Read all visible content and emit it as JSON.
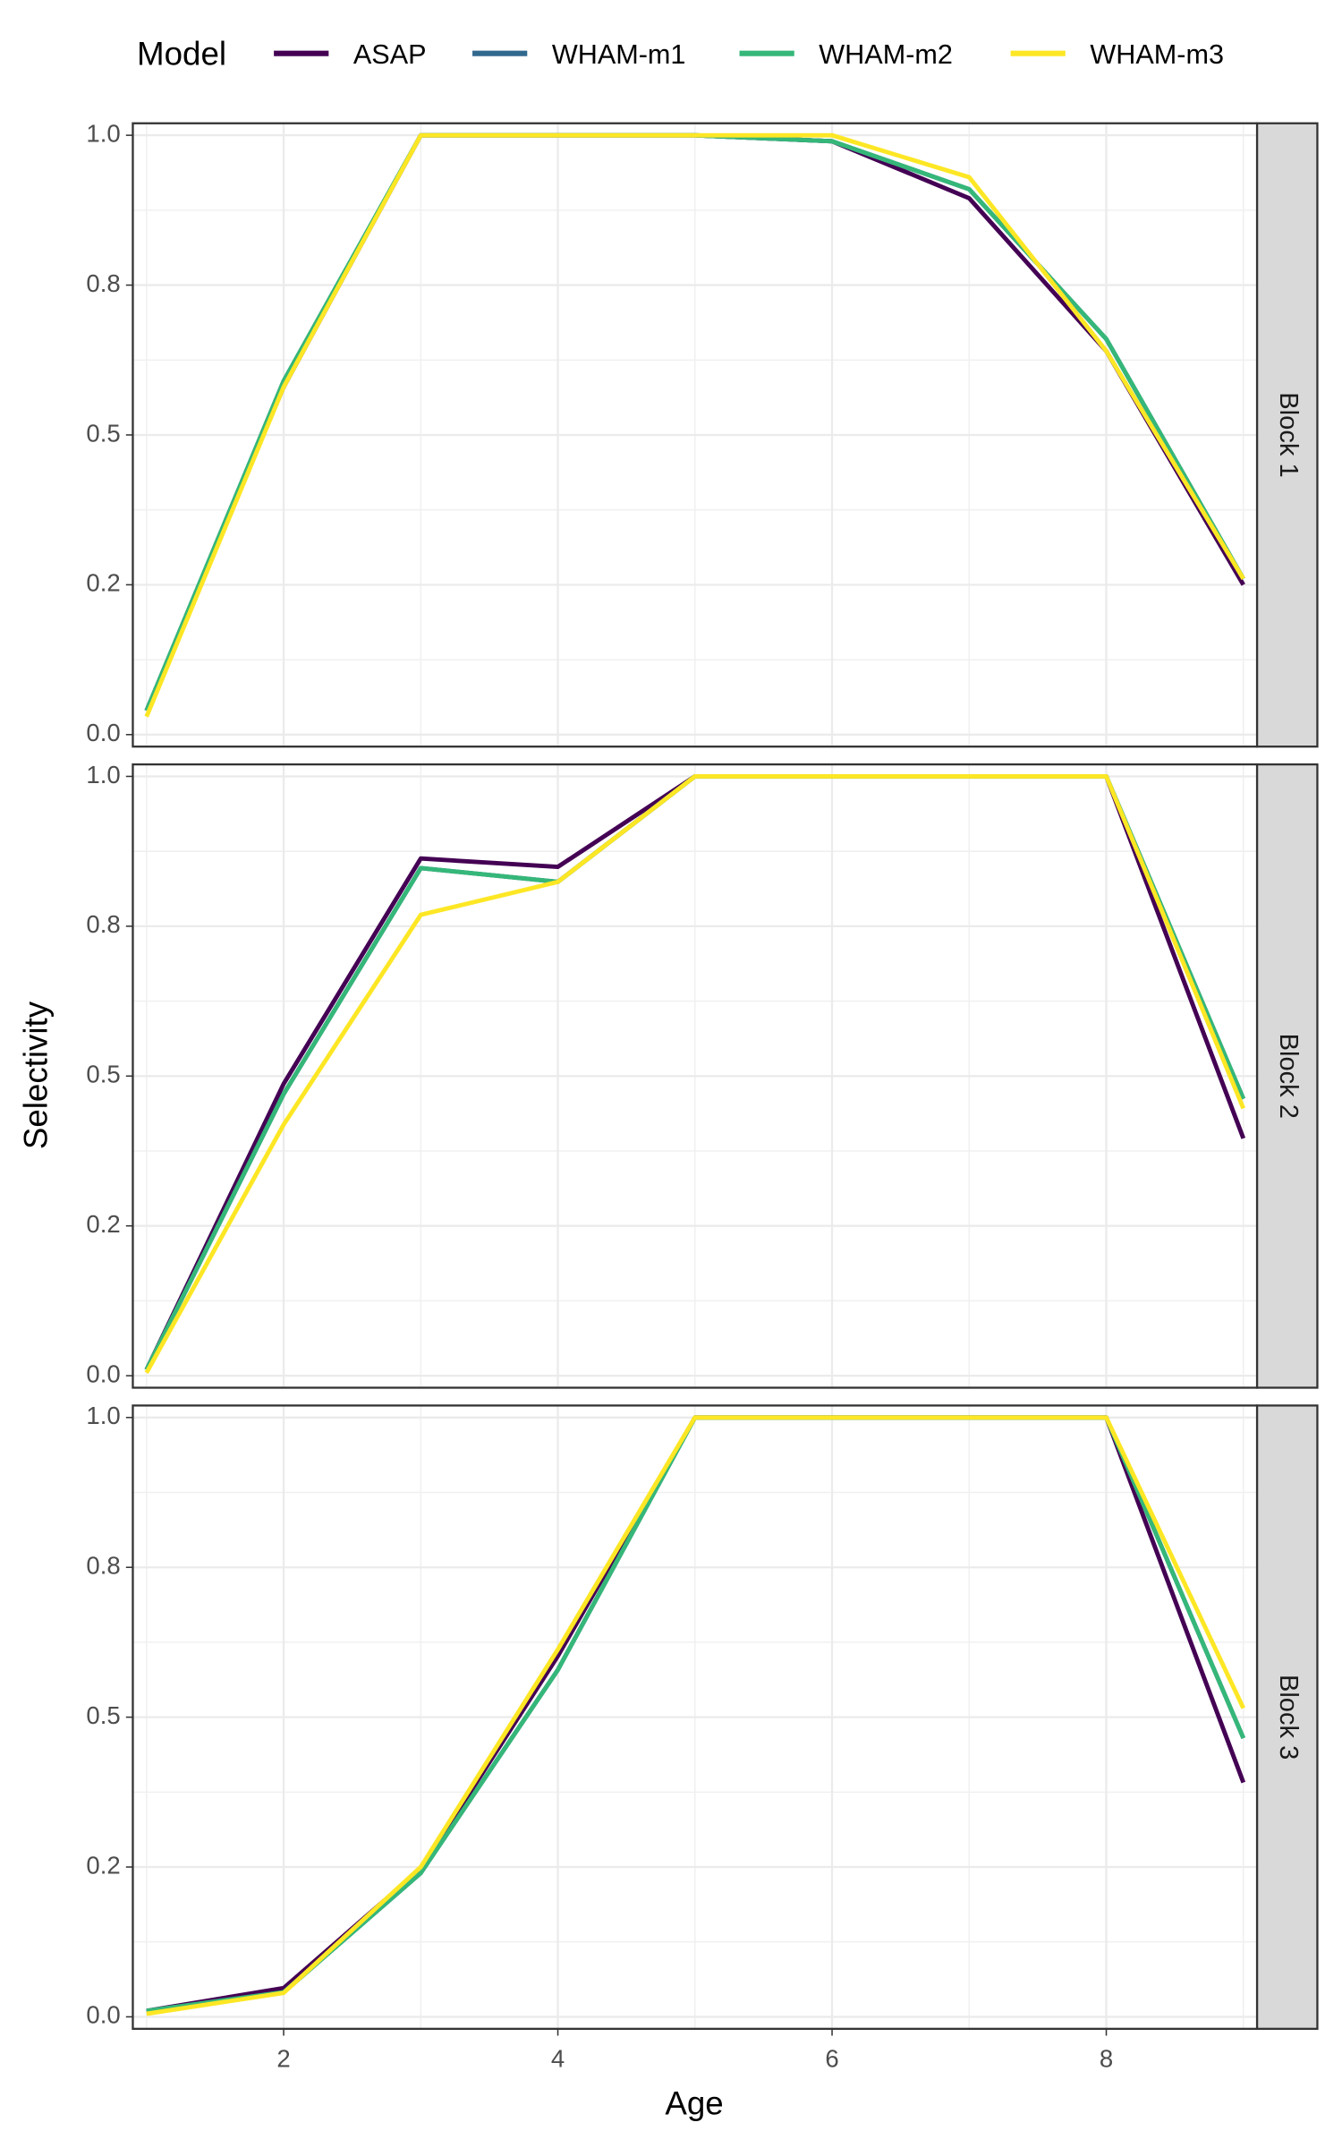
{
  "chart_data": {
    "type": "line",
    "legend_title": "Model",
    "x_label": "Age",
    "y_label": "Selectivity",
    "x": [
      1,
      2,
      3,
      4,
      5,
      6,
      7,
      8,
      9
    ],
    "xlim": [
      0.9,
      9.1
    ],
    "xticks": [
      2,
      4,
      6,
      8
    ],
    "ylim": [
      -0.02,
      1.02
    ],
    "yticks": [
      {
        "value": 0,
        "label": "0.0"
      },
      {
        "value": 0.25,
        "label": "0.2"
      },
      {
        "value": 0.5,
        "label": "0.5"
      },
      {
        "value": 0.75,
        "label": "0.8"
      },
      {
        "value": 1,
        "label": "1.0"
      }
    ],
    "grid": true,
    "legend_position": "top",
    "series": [
      {
        "name": "ASAP",
        "color": "#440154"
      },
      {
        "name": "WHAM-m1",
        "color": "#31688e"
      },
      {
        "name": "WHAM-m2",
        "color": "#35b779"
      },
      {
        "name": "WHAM-m3",
        "color": "#fde725"
      }
    ],
    "facets": [
      {
        "label": "Block 1",
        "values": [
          [
            0.04,
            0.58,
            1,
            1,
            1,
            0.99,
            0.895,
            0.64,
            0.25
          ],
          [
            0.04,
            0.59,
            1,
            1,
            1,
            0.99,
            0.91,
            0.66,
            0.26
          ],
          [
            0.04,
            0.59,
            1,
            1,
            1,
            0.99,
            0.91,
            0.66,
            0.26
          ],
          [
            0.03,
            0.58,
            1,
            1,
            1,
            1,
            0.93,
            0.64,
            0.26
          ]
        ]
      },
      {
        "label": "Block 2",
        "values": [
          [
            0.01,
            0.487,
            0.863,
            0.849,
            1,
            1,
            1,
            1,
            0.396
          ],
          [
            0.01,
            0.47,
            0.847,
            0.824,
            1,
            1,
            1,
            1,
            0.462
          ],
          [
            0.01,
            0.47,
            0.847,
            0.824,
            1,
            1,
            1,
            1,
            0.462
          ],
          [
            0.005,
            0.419,
            0.769,
            0.824,
            1,
            1,
            1,
            1,
            0.446
          ]
        ]
      },
      {
        "label": "Block 3",
        "values": [
          [
            0.01,
            0.048,
            0.247,
            0.602,
            1,
            1,
            1,
            1,
            0.391
          ],
          [
            0.01,
            0.041,
            0.24,
            0.579,
            1,
            1,
            1,
            1,
            0.465
          ],
          [
            0.01,
            0.041,
            0.24,
            0.579,
            1,
            1,
            1,
            1,
            0.465
          ],
          [
            0.005,
            0.04,
            0.25,
            0.613,
            1,
            1,
            1,
            1,
            0.515
          ]
        ]
      }
    ]
  }
}
